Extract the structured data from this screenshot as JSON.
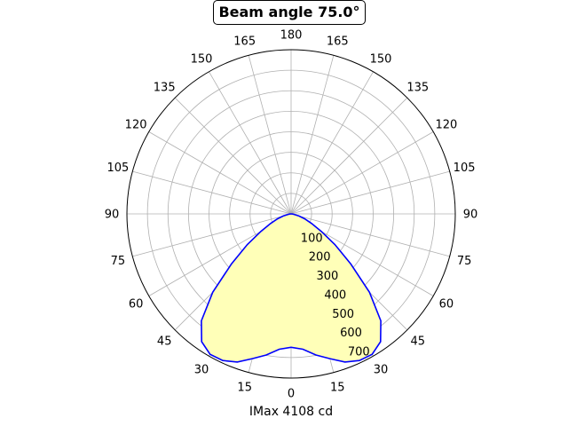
{
  "chart_data": {
    "type": "polar",
    "title": "Beam angle 75.0°",
    "xlabel": "IMax 4108 cd",
    "theta_ticks": [
      0,
      15,
      30,
      45,
      60,
      75,
      90,
      105,
      120,
      135,
      150,
      165,
      180,
      165,
      150,
      135,
      120,
      105,
      90,
      75,
      60,
      45,
      30,
      15
    ],
    "radial_ticks": [
      100,
      200,
      300,
      400,
      500,
      600,
      700
    ],
    "rlim": [
      0,
      800
    ],
    "grid": true,
    "fill_color": "#ffffb8",
    "line_color": "#0000ff",
    "series": [
      {
        "angle": [
          0,
          5,
          10,
          15,
          20,
          25,
          30,
          35,
          40,
          45,
          50,
          55,
          60,
          65,
          70,
          75,
          80,
          85,
          90
        ],
        "intensity": [
          650,
          662,
          698,
          730,
          768,
          788,
          790,
          760,
          680,
          540,
          380,
          260,
          170,
          110,
          70,
          40,
          15,
          5,
          0
        ]
      }
    ]
  }
}
